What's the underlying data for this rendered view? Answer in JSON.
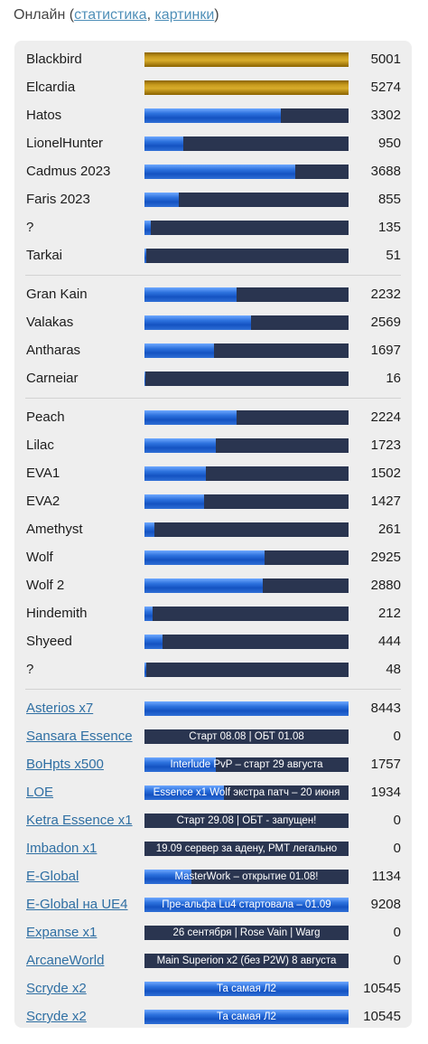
{
  "header": {
    "title": "Онлайн",
    "open": " (",
    "stats": "статистика",
    "comma": ", ",
    "pics": "картинки",
    "close": ")"
  },
  "colors": {
    "bar_bg": "#2a3550",
    "fill_blue": "#2d72de",
    "fill_gold": "#c79a1e",
    "link": "#2f6fa3"
  },
  "groups": [
    {
      "rows": [
        {
          "name": "Blackbird",
          "value": "5001",
          "fill": 1.0,
          "style": "gold"
        },
        {
          "name": "Elcardia",
          "value": "5274",
          "fill": 1.0,
          "style": "gold"
        },
        {
          "name": "Hatos",
          "value": "3302",
          "fill": 0.67
        },
        {
          "name": "LionelHunter",
          "value": "950",
          "fill": 0.19
        },
        {
          "name": "Cadmus 2023",
          "value": "3688",
          "fill": 0.74
        },
        {
          "name": "Faris 2023",
          "value": "855",
          "fill": 0.17
        },
        {
          "name": "?",
          "value": "135",
          "fill": 0.03
        },
        {
          "name": "Tarkai",
          "value": "51",
          "fill": 0.01
        }
      ]
    },
    {
      "rows": [
        {
          "name": "Gran Kain",
          "value": "2232",
          "fill": 0.45
        },
        {
          "name": "Valakas",
          "value": "2569",
          "fill": 0.52
        },
        {
          "name": "Antharas",
          "value": "1697",
          "fill": 0.34
        },
        {
          "name": "Carneiar",
          "value": "16",
          "fill": 0.003
        }
      ]
    },
    {
      "rows": [
        {
          "name": "Peach",
          "value": "2224",
          "fill": 0.45
        },
        {
          "name": "Lilac",
          "value": "1723",
          "fill": 0.35
        },
        {
          "name": "EVA1",
          "value": "1502",
          "fill": 0.3
        },
        {
          "name": "EVA2",
          "value": "1427",
          "fill": 0.29
        },
        {
          "name": "Amethyst",
          "value": "261",
          "fill": 0.05
        },
        {
          "name": "Wolf",
          "value": "2925",
          "fill": 0.59
        },
        {
          "name": "Wolf 2",
          "value": "2880",
          "fill": 0.58
        },
        {
          "name": "Hindemith",
          "value": "212",
          "fill": 0.04
        },
        {
          "name": "Shyeed",
          "value": "444",
          "fill": 0.09
        },
        {
          "name": "?",
          "value": "48",
          "fill": 0.01
        }
      ]
    },
    {
      "rows": [
        {
          "name": "Asterios x7",
          "value": "8443",
          "fill": 1.0,
          "link": true
        },
        {
          "name": "Sansara Essence",
          "value": "0",
          "fill": 0,
          "link": true,
          "text": "Старт 08.08 | ОБТ 01.08"
        },
        {
          "name": "BoHpts x500",
          "value": "1757",
          "fill": 0.35,
          "link": true,
          "text": "Interlude PvP – старт 29 августа"
        },
        {
          "name": "LOE",
          "value": "1934",
          "fill": 0.39,
          "link": true,
          "text": "Essence x1 Wolf экстра патч – 20 июня"
        },
        {
          "name": "Ketra Essence x1",
          "value": "0",
          "fill": 0,
          "link": true,
          "text": "Старт 29.08 | ОБТ - запущен!"
        },
        {
          "name": "Imbadon x1",
          "value": "0",
          "fill": 0,
          "link": true,
          "text": "19.09 сервер за адену, РМТ легально"
        },
        {
          "name": "E-Global",
          "value": "1134",
          "fill": 0.23,
          "link": true,
          "text": "MasterWork – открытие 01.08!"
        },
        {
          "name": "E-Global на UE4",
          "value": "9208",
          "fill": 1.0,
          "link": true,
          "text": "Пре-альфа Lu4 стартовала – 01.09"
        },
        {
          "name": "Expanse x1",
          "value": "0",
          "fill": 0,
          "link": true,
          "text": "26 сентября | Rose Vain | Warg"
        },
        {
          "name": "ArcaneWorld",
          "value": "0",
          "fill": 0,
          "link": true,
          "text": "Main Superion x2 (без P2W) 8 августа"
        },
        {
          "name": "Scryde x2",
          "value": "10545",
          "fill": 1.0,
          "link": true,
          "text": "Та самая Л2"
        },
        {
          "name": "Scryde x2",
          "value": "10545",
          "fill": 1.0,
          "link": true,
          "text": "Та самая Л2"
        }
      ]
    }
  ]
}
